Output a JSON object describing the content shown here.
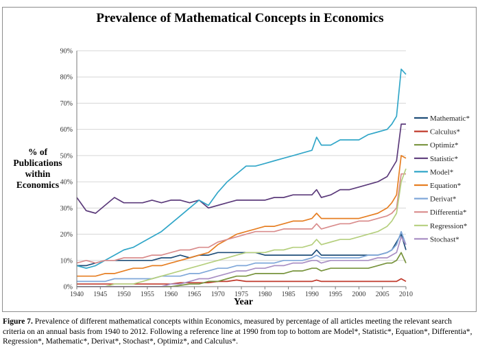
{
  "caption": {
    "label": "Figure 7.",
    "text": " Prevalence of different mathematical concepts within Economics, measured by percentage of all articles meeting the relevant search criteria on an annual basis from 1940 to 2012. Following a reference line at 1990 from top to bottom are Model*, Statistic*, Equation*, Differentia*, Regression*, Mathematic*, Derivat*, Stochast*, Optimiz*, and Calculus*."
  },
  "chart_data": {
    "type": "line",
    "title": "Prevalence of  Mathematical Concepts in Economics",
    "xlabel": "Year",
    "ylabel": "% of Publications within Economics",
    "xlim": [
      1940,
      2010
    ],
    "ylim": [
      0,
      0.9
    ],
    "x_ticks": [
      "1940",
      "1945",
      "1950",
      "1955",
      "1960",
      "1965",
      "1970",
      "1975",
      "1980",
      "1985",
      "1990",
      "1995",
      "2000",
      "2005",
      "2010"
    ],
    "y_ticks": [
      "0%",
      "10%",
      "20%",
      "30%",
      "40%",
      "50%",
      "60%",
      "70%",
      "80%",
      "90%"
    ],
    "legend_position": "right",
    "x": [
      1940,
      1942,
      1944,
      1946,
      1948,
      1950,
      1952,
      1954,
      1956,
      1958,
      1960,
      1962,
      1964,
      1966,
      1968,
      1970,
      1972,
      1974,
      1976,
      1978,
      1980,
      1982,
      1984,
      1986,
      1988,
      1990,
      1991,
      1992,
      1994,
      1996,
      1998,
      2000,
      2002,
      2004,
      2006,
      2007,
      2008,
      2009,
      2010
    ],
    "series": [
      {
        "name": "Mathematic*",
        "color": "#1f4e79",
        "values": [
          0.08,
          0.08,
          0.09,
          0.1,
          0.1,
          0.1,
          0.1,
          0.1,
          0.1,
          0.11,
          0.11,
          0.12,
          0.11,
          0.12,
          0.12,
          0.13,
          0.13,
          0.13,
          0.13,
          0.13,
          0.12,
          0.12,
          0.12,
          0.12,
          0.12,
          0.12,
          0.14,
          0.12,
          0.12,
          0.12,
          0.12,
          0.12,
          0.12,
          0.12,
          0.13,
          0.14,
          0.17,
          0.2,
          0.14
        ]
      },
      {
        "name": "Calculus*",
        "color": "#c0392b",
        "values": [
          0.01,
          0.01,
          0.01,
          0.01,
          0.01,
          0.01,
          0.01,
          0.01,
          0.01,
          0.01,
          0.01,
          0.015,
          0.015,
          0.015,
          0.015,
          0.02,
          0.02,
          0.025,
          0.02,
          0.02,
          0.02,
          0.02,
          0.02,
          0.02,
          0.02,
          0.02,
          0.025,
          0.02,
          0.02,
          0.02,
          0.02,
          0.02,
          0.02,
          0.02,
          0.02,
          0.02,
          0.02,
          0.03,
          0.02
        ]
      },
      {
        "name": "Optimiz*",
        "color": "#77933c",
        "values": [
          0,
          0,
          0,
          0,
          0,
          0,
          0,
          0,
          0,
          0,
          0,
          0.005,
          0.01,
          0.01,
          0.02,
          0.02,
          0.03,
          0.04,
          0.04,
          0.05,
          0.05,
          0.05,
          0.05,
          0.06,
          0.06,
          0.07,
          0.07,
          0.06,
          0.07,
          0.07,
          0.07,
          0.07,
          0.07,
          0.08,
          0.09,
          0.09,
          0.1,
          0.13,
          0.09
        ]
      },
      {
        "name": "Statistic*",
        "color": "#5b3a7a",
        "values": [
          0.34,
          0.29,
          0.28,
          0.31,
          0.34,
          0.32,
          0.32,
          0.32,
          0.33,
          0.32,
          0.33,
          0.33,
          0.32,
          0.33,
          0.3,
          0.31,
          0.32,
          0.33,
          0.33,
          0.33,
          0.33,
          0.34,
          0.34,
          0.35,
          0.35,
          0.35,
          0.37,
          0.34,
          0.35,
          0.37,
          0.37,
          0.38,
          0.39,
          0.4,
          0.42,
          0.45,
          0.48,
          0.62,
          0.62
        ]
      },
      {
        "name": "Model*",
        "color": "#31a6c8",
        "values": [
          0.08,
          0.07,
          0.08,
          0.1,
          0.12,
          0.14,
          0.15,
          0.17,
          0.19,
          0.21,
          0.24,
          0.27,
          0.3,
          0.33,
          0.31,
          0.36,
          0.4,
          0.43,
          0.46,
          0.46,
          0.47,
          0.48,
          0.49,
          0.5,
          0.51,
          0.52,
          0.57,
          0.54,
          0.54,
          0.56,
          0.56,
          0.56,
          0.58,
          0.59,
          0.6,
          0.62,
          0.65,
          0.83,
          0.81
        ]
      },
      {
        "name": "Equation*",
        "color": "#e67e22",
        "values": [
          0.04,
          0.04,
          0.04,
          0.05,
          0.05,
          0.06,
          0.07,
          0.07,
          0.08,
          0.08,
          0.09,
          0.1,
          0.11,
          0.12,
          0.13,
          0.16,
          0.18,
          0.2,
          0.21,
          0.22,
          0.23,
          0.23,
          0.24,
          0.25,
          0.25,
          0.26,
          0.28,
          0.26,
          0.26,
          0.26,
          0.26,
          0.26,
          0.27,
          0.28,
          0.3,
          0.32,
          0.35,
          0.5,
          0.49
        ]
      },
      {
        "name": "Derivat*",
        "color": "#7fa7d9",
        "values": [
          0.02,
          0.02,
          0.02,
          0.02,
          0.03,
          0.03,
          0.03,
          0.03,
          0.03,
          0.04,
          0.04,
          0.04,
          0.05,
          0.05,
          0.06,
          0.07,
          0.07,
          0.08,
          0.08,
          0.09,
          0.09,
          0.09,
          0.1,
          0.1,
          0.1,
          0.11,
          0.12,
          0.11,
          0.11,
          0.11,
          0.11,
          0.11,
          0.12,
          0.12,
          0.13,
          0.14,
          0.16,
          0.21,
          0.16
        ]
      },
      {
        "name": "Differentia*",
        "color": "#d98c8c",
        "values": [
          0.09,
          0.1,
          0.09,
          0.1,
          0.1,
          0.11,
          0.11,
          0.11,
          0.12,
          0.12,
          0.13,
          0.14,
          0.14,
          0.15,
          0.15,
          0.17,
          0.18,
          0.19,
          0.2,
          0.21,
          0.21,
          0.21,
          0.22,
          0.22,
          0.22,
          0.22,
          0.24,
          0.22,
          0.23,
          0.24,
          0.24,
          0.25,
          0.25,
          0.26,
          0.27,
          0.28,
          0.3,
          0.43,
          0.43
        ]
      },
      {
        "name": "Regression*",
        "color": "#b5cf7e",
        "values": [
          0,
          0,
          0,
          0,
          0.01,
          0.01,
          0.01,
          0.02,
          0.03,
          0.04,
          0.05,
          0.06,
          0.07,
          0.08,
          0.09,
          0.1,
          0.11,
          0.12,
          0.13,
          0.13,
          0.13,
          0.14,
          0.14,
          0.15,
          0.15,
          0.16,
          0.18,
          0.16,
          0.17,
          0.18,
          0.18,
          0.19,
          0.2,
          0.21,
          0.23,
          0.25,
          0.28,
          0.4,
          0.45
        ]
      },
      {
        "name": "Stochast*",
        "color": "#a98fc4",
        "values": [
          0,
          0,
          0,
          0,
          0,
          0,
          0,
          0,
          0,
          0,
          0.01,
          0.01,
          0.02,
          0.03,
          0.03,
          0.04,
          0.05,
          0.06,
          0.06,
          0.07,
          0.07,
          0.08,
          0.08,
          0.09,
          0.09,
          0.1,
          0.1,
          0.09,
          0.1,
          0.1,
          0.1,
          0.1,
          0.1,
          0.11,
          0.11,
          0.12,
          0.13,
          0.19,
          0.16
        ]
      }
    ]
  }
}
